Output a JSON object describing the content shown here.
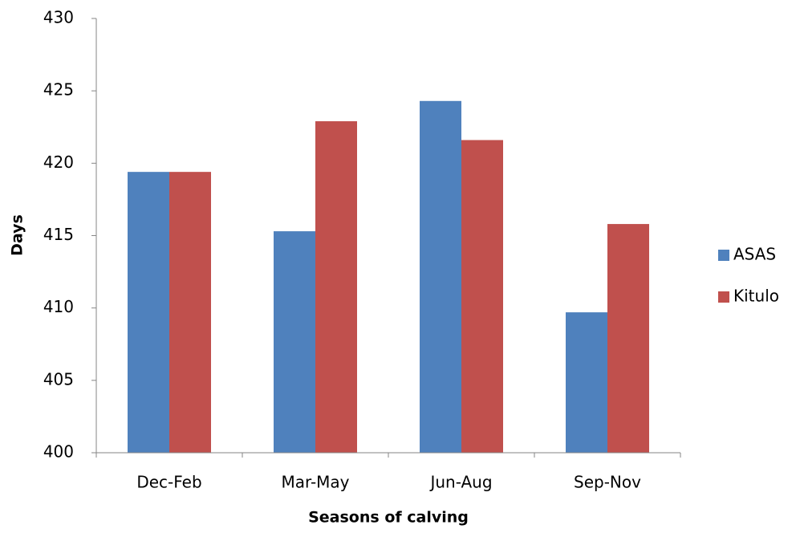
{
  "chart_data": {
    "type": "bar",
    "x_label": "Seasons of calving",
    "y_label": "Days",
    "categories": [
      "Dec-Feb",
      "Mar-May",
      "Jun-Aug",
      "Sep-Nov"
    ],
    "series": [
      {
        "name": "ASAS",
        "color": "#4f81bd",
        "values": [
          419.4,
          415.3,
          424.3,
          409.7
        ]
      },
      {
        "name": "Kitulo",
        "color": "#c0504d",
        "values": [
          419.4,
          422.9,
          421.6,
          415.8
        ]
      }
    ],
    "ylim": [
      400,
      430
    ],
    "yticks": [
      400,
      405,
      410,
      415,
      420,
      425,
      430
    ],
    "grid": false,
    "legend": "right"
  }
}
